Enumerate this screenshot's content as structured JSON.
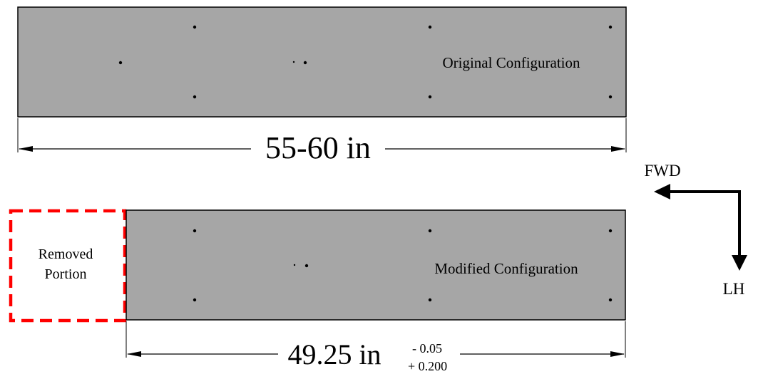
{
  "original": {
    "label": "Original Configuration",
    "dimension": "55-60 in"
  },
  "modified": {
    "label": "Modified Configuration",
    "dimension": "49.25 in",
    "tolerance_minus": "- 0.05",
    "tolerance_plus": "+ 0.200"
  },
  "removed": {
    "line1": "Removed",
    "line2": "Portion"
  },
  "directions": {
    "forward": "FWD",
    "left_hand": "LH"
  },
  "colors": {
    "panel_fill": "#a6a6a6",
    "removed_outline": "#ff0000",
    "lines": "#000000"
  }
}
